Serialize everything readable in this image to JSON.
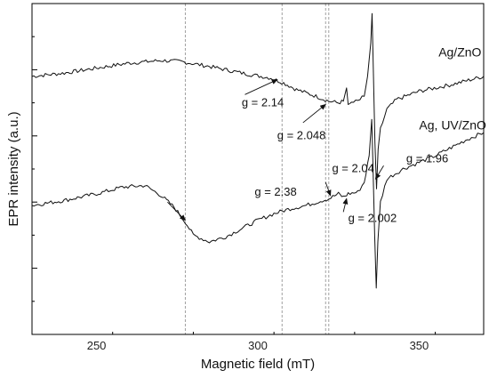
{
  "chart_data": {
    "type": "line",
    "title": "",
    "xlabel": "Magnetic field (mT)",
    "ylabel": "EPR intensity (a.u.)",
    "xlim": [
      230,
      370
    ],
    "ylim": [
      0,
      100
    ],
    "xticks": [
      250,
      300,
      350
    ],
    "grid": false,
    "y_ticks_labeled": false,
    "colors": {
      "line": "#111111",
      "guide": "#888888",
      "axis": "#000000"
    },
    "guide_lines_x": [
      277.5,
      307.5,
      321.0,
      322.0
    ],
    "series": [
      {
        "name": "Ag/ZnO",
        "points": [
          [
            230,
            78.0
          ],
          [
            240,
            79.0
          ],
          [
            250,
            80.5
          ],
          [
            260,
            82.0
          ],
          [
            270,
            82.8
          ],
          [
            276,
            82.5
          ],
          [
            285,
            81.0
          ],
          [
            295,
            79.0
          ],
          [
            304,
            77.5
          ],
          [
            308,
            76.0
          ],
          [
            312,
            74.0
          ],
          [
            318,
            72.0
          ],
          [
            322,
            70.5
          ],
          [
            325,
            70.0
          ],
          [
            326.5,
            70.5
          ],
          [
            327.5,
            74.5
          ],
          [
            328,
            69.5
          ],
          [
            329,
            70.0
          ],
          [
            331,
            70.5
          ],
          [
            333,
            72.0
          ],
          [
            334,
            78.0
          ],
          [
            335,
            88.0
          ],
          [
            335.4,
            97.0
          ],
          [
            335.8,
            80.0
          ],
          [
            336.3,
            58.0
          ],
          [
            336.8,
            44.0
          ],
          [
            337.3,
            56.0
          ],
          [
            338,
            62.0
          ],
          [
            340,
            68.0
          ],
          [
            343,
            71.0
          ],
          [
            350,
            73.5
          ],
          [
            360,
            75.5
          ],
          [
            370,
            78.0
          ]
        ]
      },
      {
        "name": "Ag, UV/ZnO",
        "points": [
          [
            230,
            39.0
          ],
          [
            240,
            40.5
          ],
          [
            250,
            42.5
          ],
          [
            258,
            44.5
          ],
          [
            265,
            45.0
          ],
          [
            270,
            42.0
          ],
          [
            274,
            38.5
          ],
          [
            277.5,
            34.0
          ],
          [
            280,
            30.0
          ],
          [
            285,
            28.0
          ],
          [
            290,
            29.5
          ],
          [
            295,
            32.0
          ],
          [
            300,
            34.5
          ],
          [
            305,
            36.5
          ],
          [
            310,
            38.0
          ],
          [
            315,
            39.0
          ],
          [
            320,
            40.5
          ],
          [
            322,
            41.0
          ],
          [
            325,
            42.5
          ],
          [
            326.5,
            41.5
          ],
          [
            328,
            42.5
          ],
          [
            331,
            43.0
          ],
          [
            333,
            46.0
          ],
          [
            334.5,
            54.0
          ],
          [
            335.3,
            65.0
          ],
          [
            335.7,
            51.0
          ],
          [
            336.2,
            30.0
          ],
          [
            336.7,
            14.0
          ],
          [
            337.2,
            28.0
          ],
          [
            338,
            40.0
          ],
          [
            340,
            47.0
          ],
          [
            345,
            50.0
          ],
          [
            350,
            52.0
          ],
          [
            355,
            54.0
          ],
          [
            360,
            56.5
          ],
          [
            365,
            59.0
          ],
          [
            370,
            61.0
          ]
        ]
      }
    ],
    "legend_entries": [
      {
        "text": "Ag/ZnO",
        "x": 356,
        "y": 84
      },
      {
        "text": "Ag, UV/ZnO",
        "x": 350,
        "y": 62
      }
    ],
    "annotations": [
      {
        "text": "g = 2.14",
        "text_x": 295,
        "text_y": 69,
        "arrow_from": [
          296,
          72.5
        ],
        "arrow_to": [
          306,
          77
        ]
      },
      {
        "text": "g = 2.048",
        "text_x": 306,
        "text_y": 59,
        "arrow_from": [
          314,
          64
        ],
        "arrow_to": [
          321,
          69.5
        ]
      },
      {
        "text": "g = 2.38",
        "text_x": 299,
        "text_y": 42,
        "arrow_from": [
          272,
          40
        ],
        "arrow_to": [
          277.5,
          34.5
        ]
      },
      {
        "text": "g = 2.04",
        "text_x": 323,
        "text_y": 49,
        "arrow_from": [
          321,
          46
        ],
        "arrow_to": [
          322.5,
          42
        ]
      },
      {
        "text": "g = 2.002",
        "text_x": 328,
        "text_y": 34,
        "arrow_from": [
          326.5,
          37
        ],
        "arrow_to": [
          327.5,
          41
        ]
      },
      {
        "text": "g = 1.96",
        "text_x": 346,
        "text_y": 52,
        "arrow_from": [
          339,
          51
        ],
        "arrow_to": [
          336.5,
          47
        ]
      }
    ]
  }
}
